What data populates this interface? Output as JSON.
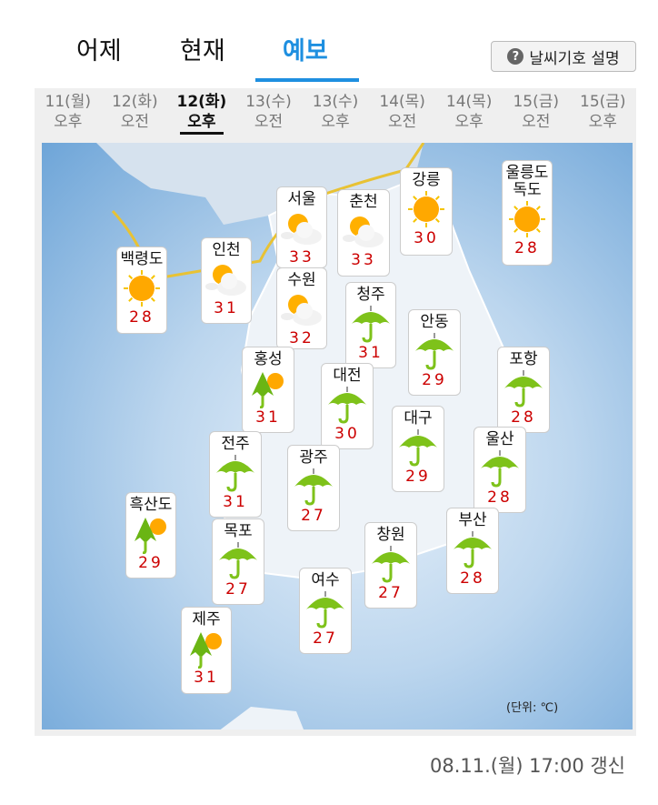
{
  "tabs": [
    {
      "label": "어제"
    },
    {
      "label": "현재"
    },
    {
      "label": "예보",
      "active": true
    }
  ],
  "help_button": "날씨기호 설명",
  "times": [
    {
      "day": "11(월)",
      "half": "오후"
    },
    {
      "day": "12(화)",
      "half": "오전"
    },
    {
      "day": "12(화)",
      "half": "오후",
      "active": true
    },
    {
      "day": "13(수)",
      "half": "오전"
    },
    {
      "day": "13(수)",
      "half": "오후"
    },
    {
      "day": "14(목)",
      "half": "오전"
    },
    {
      "day": "14(목)",
      "half": "오후"
    },
    {
      "day": "15(금)",
      "half": "오전"
    },
    {
      "day": "15(금)",
      "half": "오후"
    }
  ],
  "cities": [
    {
      "name": "백령도",
      "temp": "28",
      "icon": "sun-icon"
    },
    {
      "name": "인천",
      "temp": "31",
      "icon": "partly-cloudy-icon"
    },
    {
      "name": "서울",
      "temp": "33",
      "icon": "partly-cloudy-icon"
    },
    {
      "name": "춘천",
      "temp": "33",
      "icon": "partly-cloudy-icon"
    },
    {
      "name": "강릉",
      "temp": "30",
      "icon": "sun-icon"
    },
    {
      "name": "울릉도\n독도",
      "temp": "28",
      "icon": "sun-icon"
    },
    {
      "name": "수원",
      "temp": "32",
      "icon": "partly-cloudy-icon"
    },
    {
      "name": "청주",
      "temp": "31",
      "icon": "umbrella-icon"
    },
    {
      "name": "안동",
      "temp": "29",
      "icon": "umbrella-icon"
    },
    {
      "name": "홍성",
      "temp": "31",
      "icon": "shower-icon"
    },
    {
      "name": "대전",
      "temp": "30",
      "icon": "umbrella-icon"
    },
    {
      "name": "포항",
      "temp": "28",
      "icon": "umbrella-icon"
    },
    {
      "name": "대구",
      "temp": "29",
      "icon": "umbrella-icon"
    },
    {
      "name": "전주",
      "temp": "31",
      "icon": "umbrella-icon"
    },
    {
      "name": "울산",
      "temp": "28",
      "icon": "umbrella-icon"
    },
    {
      "name": "광주",
      "temp": "27",
      "icon": "umbrella-icon"
    },
    {
      "name": "흑산도",
      "temp": "29",
      "icon": "shower-icon"
    },
    {
      "name": "목포",
      "temp": "27",
      "icon": "umbrella-icon"
    },
    {
      "name": "창원",
      "temp": "27",
      "icon": "umbrella-icon"
    },
    {
      "name": "부산",
      "temp": "28",
      "icon": "umbrella-icon"
    },
    {
      "name": "여수",
      "temp": "27",
      "icon": "umbrella-icon"
    },
    {
      "name": "제주",
      "temp": "31",
      "icon": "shower-icon"
    }
  ],
  "unit": "(단위: ℃)",
  "updated": "08.11.(월) 17:00 갱신",
  "colors": {
    "accent": "#1e8fe0",
    "temp": "#cc0000"
  }
}
